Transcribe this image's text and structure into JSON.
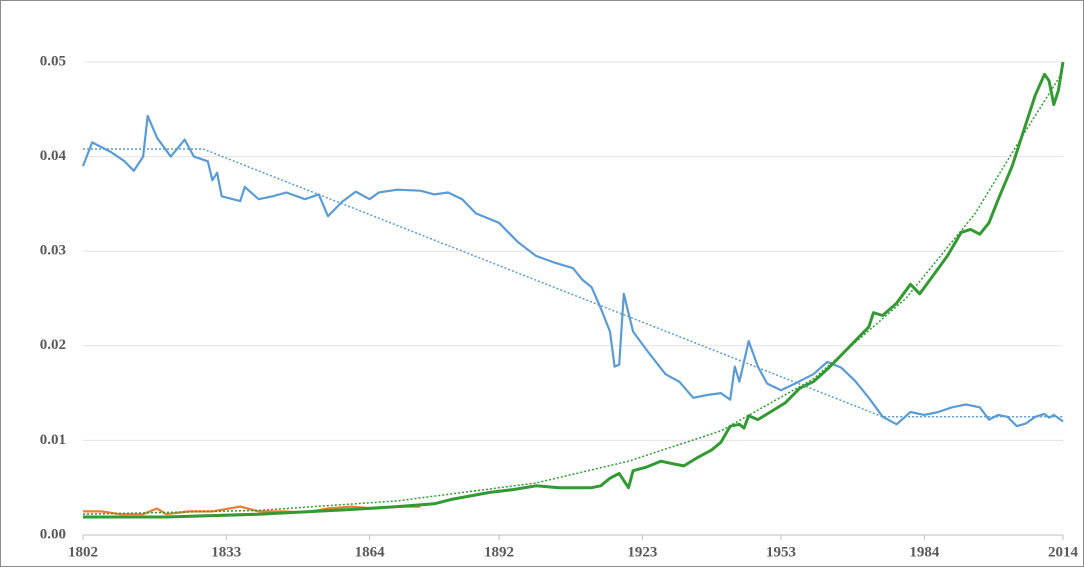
{
  "chart_data": {
    "type": "line",
    "xlim": [
      1802,
      2014
    ],
    "xticks": [
      1802,
      1833,
      1864,
      1892,
      1923,
      1953,
      1984,
      2014
    ],
    "ylim": [
      0,
      0.05
    ],
    "yticks": [
      {
        "value": 0,
        "label": "0.00"
      },
      0.01,
      0.02,
      0.03,
      0.04,
      0.05
    ],
    "grid": true,
    "series": [
      {
        "color": "#5b9bd5",
        "style": "solid",
        "x": [
          1802,
          1804,
          1808,
          1811,
          1813,
          1815,
          1816,
          1818,
          1821,
          1824,
          1826,
          1829,
          1830,
          1831,
          1832,
          1836,
          1837,
          1840,
          1843,
          1846,
          1850,
          1853,
          1855,
          1858,
          1861,
          1864,
          1866,
          1870,
          1875,
          1878,
          1881,
          1884,
          1887,
          1892,
          1896,
          1900,
          1904,
          1908,
          1910,
          1912,
          1914,
          1916,
          1917,
          1918,
          1919,
          1921,
          1924,
          1928,
          1931,
          1934,
          1937,
          1940,
          1942,
          1943,
          1944,
          1946,
          1948,
          1950,
          1953,
          1956,
          1960,
          1963,
          1966,
          1969,
          1972,
          1975,
          1978,
          1981,
          1984,
          1987,
          1990,
          1993,
          1996,
          1998,
          2000,
          2002,
          2004,
          2006,
          2008,
          2010,
          2011,
          2012,
          2014
        ],
        "values": [
          0.039,
          0.0415,
          0.0405,
          0.0395,
          0.0385,
          0.04,
          0.0443,
          0.042,
          0.04,
          0.0418,
          0.04,
          0.0395,
          0.0375,
          0.0383,
          0.0358,
          0.0353,
          0.0368,
          0.0355,
          0.0358,
          0.0362,
          0.0355,
          0.036,
          0.0337,
          0.0352,
          0.0363,
          0.0355,
          0.0362,
          0.0365,
          0.0364,
          0.036,
          0.0362,
          0.0355,
          0.034,
          0.033,
          0.031,
          0.0295,
          0.0288,
          0.0282,
          0.027,
          0.0262,
          0.024,
          0.0215,
          0.0178,
          0.018,
          0.0255,
          0.0215,
          0.0195,
          0.017,
          0.0162,
          0.0145,
          0.0148,
          0.015,
          0.0143,
          0.0178,
          0.0162,
          0.0205,
          0.0178,
          0.016,
          0.0153,
          0.016,
          0.017,
          0.0183,
          0.0177,
          0.0163,
          0.0145,
          0.0125,
          0.0117,
          0.013,
          0.0127,
          0.013,
          0.0135,
          0.0138,
          0.0135,
          0.0122,
          0.0127,
          0.0125,
          0.0115,
          0.0118,
          0.0125,
          0.0128,
          0.0124,
          0.0127,
          0.012
        ]
      },
      {
        "color": "#ed7d31",
        "style": "solid",
        "x": [
          1802,
          1806,
          1810,
          1815,
          1818,
          1820,
          1825,
          1830,
          1836,
          1840,
          1845,
          1850,
          1855,
          1860,
          1865,
          1870,
          1875
        ],
        "values": [
          0.0025,
          0.0025,
          0.0022,
          0.0022,
          0.0028,
          0.0022,
          0.0025,
          0.0025,
          0.003,
          0.0025,
          0.0025,
          0.0024,
          0.0028,
          0.003,
          0.0028,
          0.003,
          0.003
        ]
      },
      {
        "color": "#339933",
        "style": "solid",
        "x": [
          1802,
          1820,
          1840,
          1860,
          1870,
          1878,
          1882,
          1890,
          1895,
          1900,
          1905,
          1912,
          1914,
          1916,
          1918,
          1920,
          1921,
          1924,
          1927,
          1930,
          1932,
          1935,
          1938,
          1940,
          1942,
          1944,
          1945,
          1946,
          1948,
          1951,
          1954,
          1957,
          1960,
          1963,
          1966,
          1969,
          1972,
          1973,
          1975,
          1978,
          1981,
          1983,
          1986,
          1989,
          1992,
          1994,
          1996,
          1998,
          2000,
          2003,
          2005,
          2008,
          2010,
          2011,
          2012,
          2013,
          2014
        ],
        "values": [
          0.0019,
          0.0019,
          0.0022,
          0.0027,
          0.003,
          0.0033,
          0.0038,
          0.0045,
          0.0048,
          0.0052,
          0.005,
          0.005,
          0.0052,
          0.006,
          0.0065,
          0.005,
          0.0068,
          0.0072,
          0.0078,
          0.0075,
          0.0073,
          0.0082,
          0.009,
          0.0098,
          0.0115,
          0.0117,
          0.0113,
          0.0126,
          0.0122,
          0.0131,
          0.014,
          0.0155,
          0.0162,
          0.0175,
          0.019,
          0.0205,
          0.022,
          0.0235,
          0.0232,
          0.0245,
          0.0265,
          0.0255,
          0.0275,
          0.0295,
          0.032,
          0.0323,
          0.0318,
          0.033,
          0.0355,
          0.039,
          0.042,
          0.0465,
          0.0487,
          0.048,
          0.0455,
          0.047,
          0.05
        ]
      },
      {
        "color": "#5b9bd5",
        "style": "dotted",
        "x": [
          1802,
          1828,
          1975,
          2014
        ],
        "values": [
          0.0408,
          0.0408,
          0.0125,
          0.0125
        ]
      },
      {
        "color": "#339933",
        "style": "dotted",
        "x": [
          1802,
          1840,
          1870,
          1900,
          1920,
          1940,
          1960,
          1980,
          1995,
          2005,
          2014
        ],
        "values": [
          0.0022,
          0.0026,
          0.0036,
          0.0055,
          0.0078,
          0.011,
          0.0165,
          0.025,
          0.034,
          0.042,
          0.049
        ]
      }
    ]
  }
}
